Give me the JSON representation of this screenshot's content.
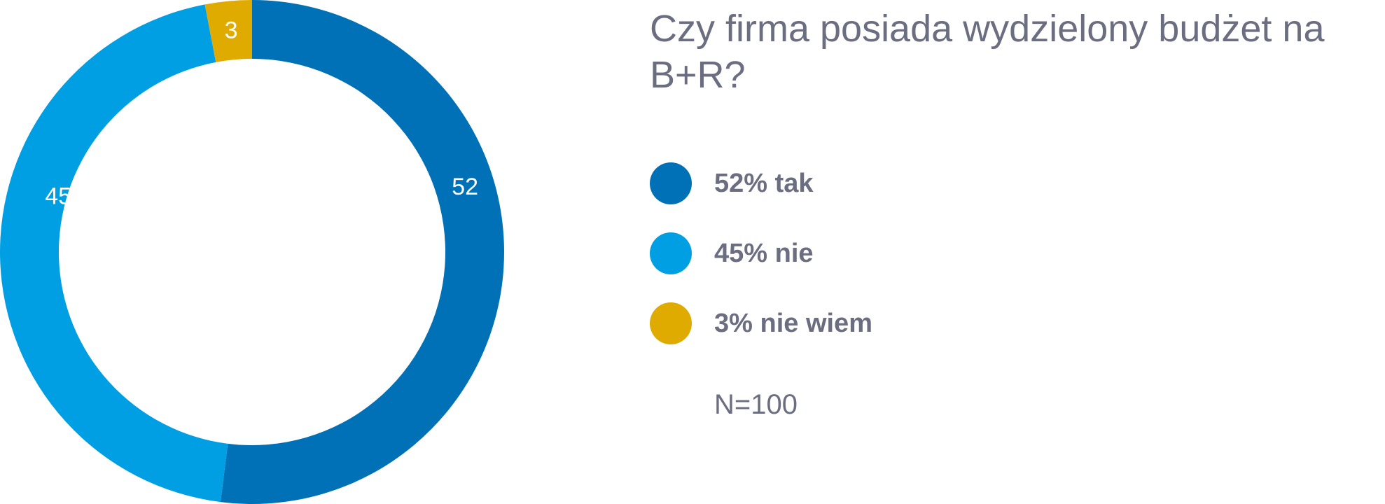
{
  "chart_data": {
    "type": "pie",
    "variant": "donut",
    "title": "Czy firma posiada wydzielony budżet na B+R?",
    "categories": [
      "tak",
      "nie",
      "nie wiem"
    ],
    "values": [
      52,
      45,
      3
    ],
    "data_labels": [
      "52",
      "45",
      "3"
    ],
    "colors": [
      "#0071b6",
      "#009fe3",
      "#dfab00"
    ],
    "legend": [
      {
        "label": "52% tak",
        "color": "#0071b6"
      },
      {
        "label": "45% nie",
        "color": "#009fe3"
      },
      {
        "label": "3% nie wiem",
        "color": "#dfab00"
      }
    ],
    "legend_position": "right",
    "start_angle": "12 o'clock, clockwise",
    "note": "N=100"
  }
}
